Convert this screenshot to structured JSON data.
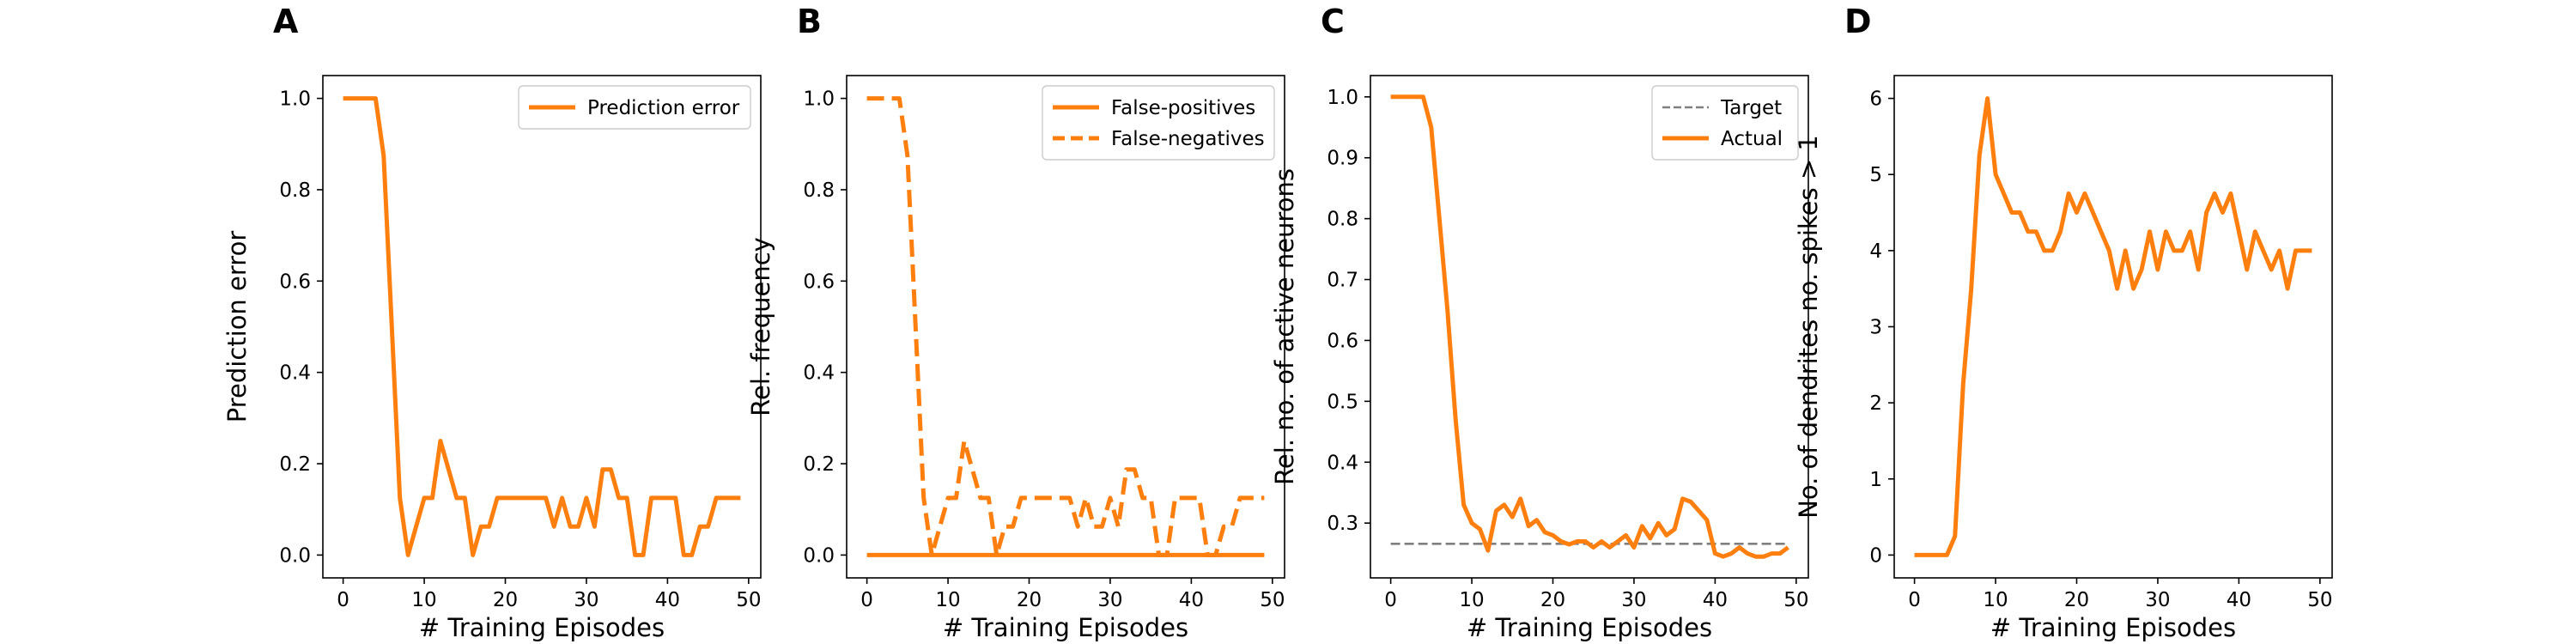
{
  "colors": {
    "series": "#ff7f0e",
    "target": "#7f7f7f",
    "axes": "#000000"
  },
  "chart_data": [
    {
      "panel": "A",
      "type": "line",
      "xlabel": "# Training Episodes",
      "ylabel": "Prediction error",
      "xlim": [
        -2.5,
        51.5
      ],
      "ylim": [
        -0.05,
        1.05
      ],
      "xticks": [
        0,
        10,
        20,
        30,
        40,
        50
      ],
      "yticks": [
        0.0,
        0.2,
        0.4,
        0.6,
        0.8,
        1.0
      ],
      "ytick_decimals": 1,
      "legend_position": "upper right",
      "series": [
        {
          "name": "Prediction error",
          "style": "solid",
          "x": [
            0,
            1,
            2,
            3,
            4,
            5,
            6,
            7,
            8,
            9,
            10,
            11,
            12,
            13,
            14,
            15,
            16,
            17,
            18,
            19,
            20,
            21,
            22,
            23,
            24,
            25,
            26,
            27,
            28,
            29,
            30,
            31,
            32,
            33,
            34,
            35,
            36,
            37,
            38,
            39,
            40,
            41,
            42,
            43,
            44,
            45,
            46,
            47,
            48,
            49
          ],
          "y": [
            1.0,
            1.0,
            1.0,
            1.0,
            1.0,
            0.875,
            0.5,
            0.125,
            0.0,
            0.0625,
            0.125,
            0.125,
            0.25,
            0.1875,
            0.125,
            0.125,
            0.0,
            0.0625,
            0.0625,
            0.125,
            0.125,
            0.125,
            0.125,
            0.125,
            0.125,
            0.125,
            0.0625,
            0.125,
            0.0625,
            0.0625,
            0.125,
            0.0625,
            0.1875,
            0.1875,
            0.125,
            0.125,
            0.0,
            0.0,
            0.125,
            0.125,
            0.125,
            0.125,
            0.0,
            0.0,
            0.0625,
            0.0625,
            0.125,
            0.125,
            0.125,
            0.125
          ]
        }
      ]
    },
    {
      "panel": "B",
      "type": "line",
      "xlabel": "# Training Episodes",
      "ylabel": "Rel. frequency",
      "xlim": [
        -2.5,
        51.5
      ],
      "ylim": [
        -0.05,
        1.05
      ],
      "xticks": [
        0,
        10,
        20,
        30,
        40,
        50
      ],
      "yticks": [
        0.0,
        0.2,
        0.4,
        0.6,
        0.8,
        1.0
      ],
      "ytick_decimals": 1,
      "legend_position": "upper right",
      "series": [
        {
          "name": "False-positives",
          "style": "solid",
          "x": [
            0,
            49
          ],
          "y": [
            0.0,
            0.0
          ]
        },
        {
          "name": "False-negatives",
          "style": "dashed",
          "x": [
            0,
            1,
            2,
            3,
            4,
            5,
            6,
            7,
            8,
            9,
            10,
            11,
            12,
            13,
            14,
            15,
            16,
            17,
            18,
            19,
            20,
            21,
            22,
            23,
            24,
            25,
            26,
            27,
            28,
            29,
            30,
            31,
            32,
            33,
            34,
            35,
            36,
            37,
            38,
            39,
            40,
            41,
            42,
            43,
            44,
            45,
            46,
            47,
            48,
            49
          ],
          "y": [
            1.0,
            1.0,
            1.0,
            1.0,
            1.0,
            0.875,
            0.5,
            0.125,
            0.0,
            0.0625,
            0.125,
            0.125,
            0.25,
            0.1875,
            0.125,
            0.125,
            0.0,
            0.0625,
            0.0625,
            0.125,
            0.125,
            0.125,
            0.125,
            0.125,
            0.125,
            0.125,
            0.0625,
            0.125,
            0.0625,
            0.0625,
            0.125,
            0.0625,
            0.1875,
            0.1875,
            0.125,
            0.125,
            0.0,
            0.0,
            0.125,
            0.125,
            0.125,
            0.125,
            0.0,
            0.0,
            0.0625,
            0.0625,
            0.125,
            0.125,
            0.125,
            0.125
          ]
        }
      ]
    },
    {
      "panel": "C",
      "type": "line",
      "xlabel": "# Training Episodes",
      "ylabel": "Rel. no. of active neurons",
      "xlim": [
        -2.5,
        51.5
      ],
      "ylim": [
        0.21,
        1.035
      ],
      "xticks": [
        0,
        10,
        20,
        30,
        40,
        50
      ],
      "yticks": [
        0.3,
        0.4,
        0.5,
        0.6,
        0.7,
        0.8,
        0.9,
        1.0
      ],
      "ytick_decimals": 1,
      "legend_position": "upper right",
      "series": [
        {
          "name": "Target",
          "style": "dashed-gray",
          "x": [
            0,
            49
          ],
          "y": [
            0.266,
            0.266
          ]
        },
        {
          "name": "Actual",
          "style": "solid",
          "x": [
            0,
            1,
            2,
            3,
            4,
            5,
            6,
            7,
            8,
            9,
            10,
            11,
            12,
            13,
            14,
            15,
            16,
            17,
            18,
            19,
            20,
            21,
            22,
            23,
            24,
            25,
            26,
            27,
            28,
            29,
            30,
            31,
            32,
            33,
            34,
            35,
            36,
            37,
            38,
            39,
            40,
            41,
            42,
            43,
            44,
            45,
            46,
            47,
            48,
            49
          ],
          "y": [
            1.0,
            1.0,
            1.0,
            1.0,
            1.0,
            0.95,
            0.8,
            0.65,
            0.47,
            0.33,
            0.3,
            0.29,
            0.255,
            0.32,
            0.33,
            0.31,
            0.34,
            0.295,
            0.305,
            0.285,
            0.28,
            0.27,
            0.265,
            0.27,
            0.27,
            0.26,
            0.27,
            0.26,
            0.27,
            0.28,
            0.26,
            0.295,
            0.275,
            0.3,
            0.28,
            0.29,
            0.34,
            0.335,
            0.32,
            0.305,
            0.25,
            0.245,
            0.25,
            0.26,
            0.25,
            0.245,
            0.245,
            0.25,
            0.25,
            0.26
          ]
        }
      ]
    },
    {
      "panel": "D",
      "type": "line",
      "xlabel": "# Training Episodes",
      "ylabel": "No. of dendrites no. spikes > 1",
      "xlim": [
        -2.5,
        51.5
      ],
      "ylim": [
        -0.3,
        6.3
      ],
      "xticks": [
        0,
        10,
        20,
        30,
        40,
        50
      ],
      "yticks": [
        0,
        1,
        2,
        3,
        4,
        5,
        6
      ],
      "ytick_decimals": 0,
      "legend_position": "none",
      "series": [
        {
          "name": "",
          "style": "solid",
          "x": [
            0,
            1,
            2,
            3,
            4,
            5,
            6,
            7,
            8,
            9,
            10,
            11,
            12,
            13,
            14,
            15,
            16,
            17,
            18,
            19,
            20,
            21,
            22,
            23,
            24,
            25,
            26,
            27,
            28,
            29,
            30,
            31,
            32,
            33,
            34,
            35,
            36,
            37,
            38,
            39,
            40,
            41,
            42,
            43,
            44,
            45,
            46,
            47,
            48,
            49
          ],
          "y": [
            0,
            0,
            0,
            0,
            0,
            0.25,
            2.25,
            3.5,
            5.25,
            6.0,
            5.0,
            4.75,
            4.5,
            4.5,
            4.25,
            4.25,
            4.0,
            4.0,
            4.25,
            4.75,
            4.5,
            4.75,
            4.5,
            4.25,
            4.0,
            3.5,
            4.0,
            3.5,
            3.75,
            4.25,
            3.75,
            4.25,
            4.0,
            4.0,
            4.25,
            3.75,
            4.5,
            4.75,
            4.5,
            4.75,
            4.25,
            3.75,
            4.25,
            4.0,
            3.75,
            4.0,
            3.5,
            4.0,
            4.0,
            4.0
          ]
        }
      ]
    }
  ]
}
